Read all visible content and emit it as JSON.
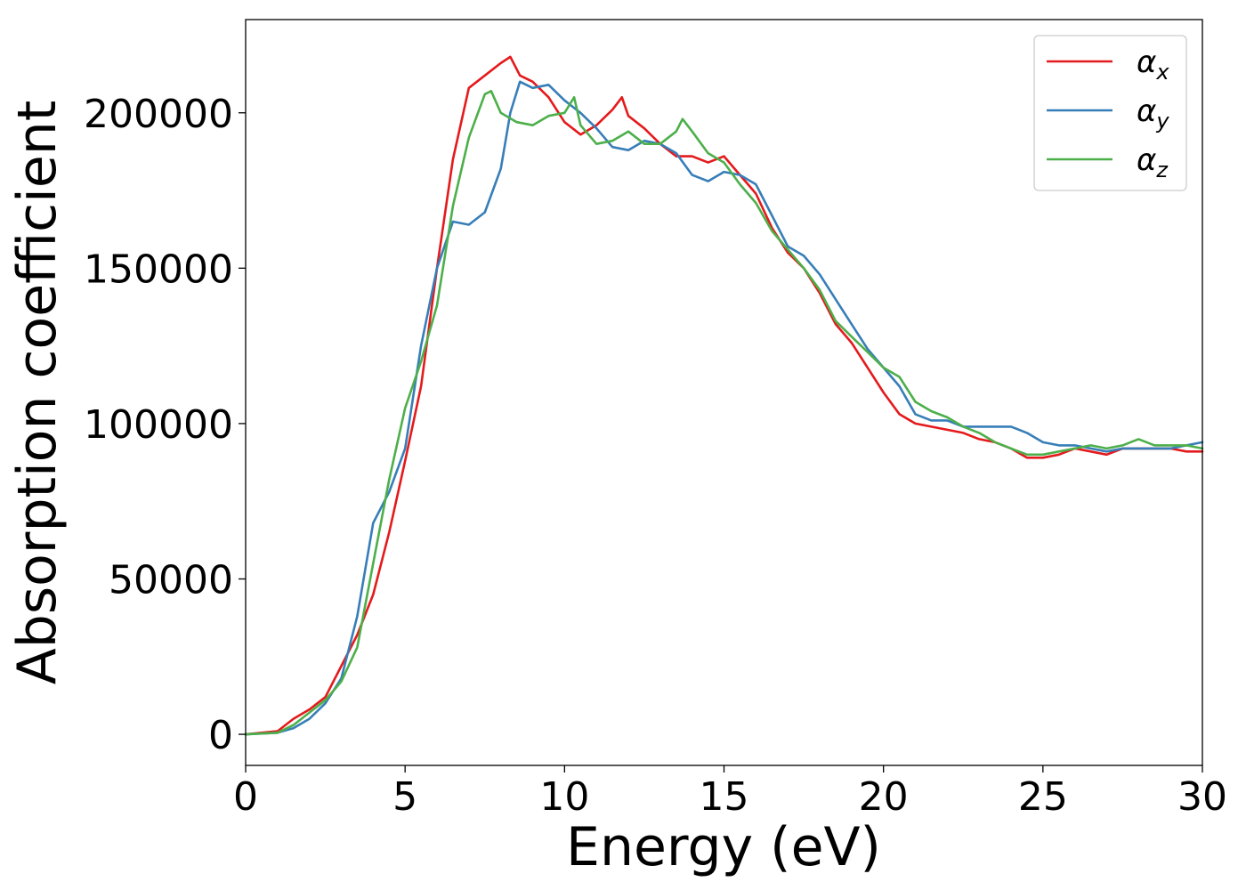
{
  "chart_data": {
    "type": "line",
    "title": "",
    "xlabel": "Energy (eV)",
    "ylabel": "Absorption coefficient",
    "xlim": [
      0,
      30
    ],
    "ylim": [
      -10000,
      230000
    ],
    "xticks": [
      0,
      5,
      10,
      15,
      20,
      25,
      30
    ],
    "xtick_labels": [
      "0",
      "5",
      "10",
      "15",
      "20",
      "25",
      "30"
    ],
    "yticks": [
      0,
      50000,
      100000,
      150000,
      200000
    ],
    "ytick_labels": [
      "0",
      "50000",
      "100000",
      "150000",
      "200000"
    ],
    "grid": false,
    "legend_position": "top-right",
    "series": [
      {
        "name": "α_x",
        "symbol": "α",
        "subscript": "x",
        "color": "#e41a1c",
        "x": [
          0,
          1,
          1.5,
          2,
          2.5,
          3,
          3.5,
          4,
          4.5,
          5,
          5.5,
          6,
          6.5,
          7,
          7.5,
          8,
          8.3,
          8.6,
          9,
          9.5,
          10,
          10.5,
          11,
          11.5,
          11.8,
          12,
          12.5,
          13,
          13.5,
          14,
          14.5,
          15,
          15.5,
          16,
          16.5,
          17,
          17.5,
          18,
          18.5,
          19,
          19.5,
          20,
          20.5,
          21,
          21.5,
          22,
          22.5,
          23,
          23.5,
          24,
          24.5,
          25,
          25.5,
          26,
          26.5,
          27,
          27.5,
          28,
          28.5,
          29,
          29.5,
          30
        ],
        "values": [
          0,
          1000,
          5000,
          8000,
          12000,
          22000,
          32000,
          45000,
          65000,
          88000,
          112000,
          150000,
          185000,
          208000,
          212000,
          216000,
          218000,
          212000,
          210000,
          205000,
          197000,
          193000,
          196000,
          201000,
          205000,
          199000,
          195000,
          190000,
          186000,
          186000,
          184000,
          186000,
          180000,
          174000,
          163000,
          155000,
          150000,
          142000,
          132000,
          126000,
          118000,
          110000,
          103000,
          100000,
          99000,
          98000,
          97000,
          95000,
          94000,
          92000,
          89000,
          89000,
          90000,
          92000,
          91000,
          90000,
          92000,
          92000,
          92000,
          92000,
          91000,
          91000
        ]
      },
      {
        "name": "α_y",
        "symbol": "α",
        "subscript": "y",
        "color": "#377eb8",
        "x": [
          0,
          1,
          1.5,
          2,
          2.5,
          3,
          3.5,
          4,
          4.5,
          5,
          5.5,
          6,
          6.5,
          7,
          7.5,
          8,
          8.3,
          8.6,
          9,
          9.5,
          10,
          10.5,
          11,
          11.5,
          12,
          12.5,
          13,
          13.5,
          14,
          14.5,
          15,
          15.5,
          16,
          16.5,
          17,
          17.5,
          18,
          18.5,
          19,
          19.5,
          20,
          20.5,
          21,
          21.5,
          22,
          22.5,
          23,
          23.5,
          24,
          24.5,
          25,
          25.5,
          26,
          26.5,
          27,
          27.5,
          28,
          28.5,
          29,
          29.5,
          30
        ],
        "values": [
          0,
          500,
          2000,
          5000,
          10000,
          18000,
          38000,
          68000,
          78000,
          92000,
          125000,
          150000,
          165000,
          164000,
          168000,
          182000,
          200000,
          210000,
          208000,
          209000,
          204000,
          200000,
          195000,
          189000,
          188000,
          191000,
          190000,
          187000,
          180000,
          178000,
          181000,
          180000,
          177000,
          167000,
          157000,
          154000,
          148000,
          140000,
          132000,
          124000,
          118000,
          112000,
          103000,
          101000,
          101000,
          99000,
          99000,
          99000,
          99000,
          97000,
          94000,
          93000,
          93000,
          92000,
          91000,
          92000,
          92000,
          92000,
          92000,
          93000,
          94000
        ]
      },
      {
        "name": "α_z",
        "symbol": "α",
        "subscript": "z",
        "color": "#4daf4a",
        "x": [
          0,
          1,
          1.5,
          2,
          2.5,
          3,
          3.5,
          4,
          4.5,
          5,
          5.5,
          6,
          6.5,
          7,
          7.5,
          7.7,
          8,
          8.5,
          9,
          9.5,
          10,
          10.3,
          10.5,
          11,
          11.5,
          12,
          12.5,
          13,
          13.5,
          13.7,
          14,
          14.5,
          15,
          15.5,
          16,
          16.5,
          17,
          17.5,
          18,
          18.5,
          19,
          19.5,
          20,
          20.5,
          21,
          21.5,
          22,
          22.5,
          23,
          23.5,
          24,
          24.5,
          25,
          25.5,
          26,
          26.5,
          27,
          27.5,
          28,
          28.5,
          29,
          29.5,
          30
        ],
        "values": [
          0,
          500,
          3000,
          7000,
          11000,
          17000,
          28000,
          55000,
          82000,
          105000,
          120000,
          138000,
          170000,
          192000,
          206000,
          207000,
          200000,
          197000,
          196000,
          199000,
          200000,
          205000,
          196000,
          190000,
          191000,
          194000,
          190000,
          190000,
          194000,
          198000,
          194000,
          187000,
          184000,
          177000,
          171000,
          162000,
          156000,
          150000,
          143000,
          133000,
          128000,
          123000,
          118000,
          115000,
          107000,
          104000,
          102000,
          99000,
          97000,
          94000,
          92000,
          90000,
          90000,
          91000,
          92000,
          93000,
          92000,
          93000,
          95000,
          93000,
          93000,
          93000,
          92000
        ]
      }
    ]
  }
}
